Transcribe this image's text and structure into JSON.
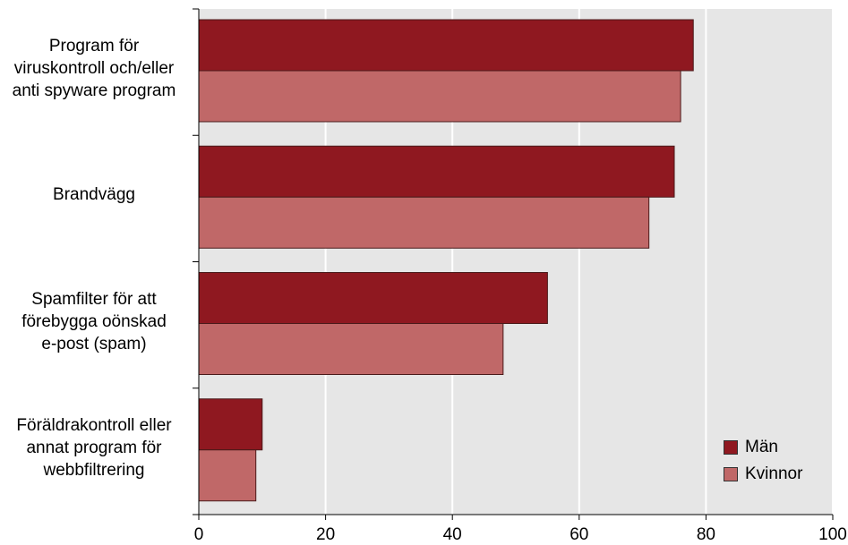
{
  "chart_data": {
    "type": "bar",
    "orientation": "horizontal",
    "categories": [
      "Program för\nviruskontroll och/eller\nanti spyware program",
      "Brandvägg",
      "Spamfilter för att\nförebygga oönskad\ne-post (spam)",
      "Föräldrakontroll eller\nannat program för\nwebbfiltrering"
    ],
    "series": [
      {
        "name": "Män",
        "values": [
          78,
          75,
          55,
          10
        ],
        "color": "#8f1820"
      },
      {
        "name": "Kvinnor",
        "values": [
          76,
          71,
          48,
          9
        ],
        "color": "#c06868"
      }
    ],
    "xlim": [
      0,
      100
    ],
    "xticks": [
      "0",
      "20",
      "40",
      "60",
      "80",
      "100"
    ],
    "grid": true,
    "legend_position": "bottom-right",
    "plot_background": "#e6e6e6"
  }
}
